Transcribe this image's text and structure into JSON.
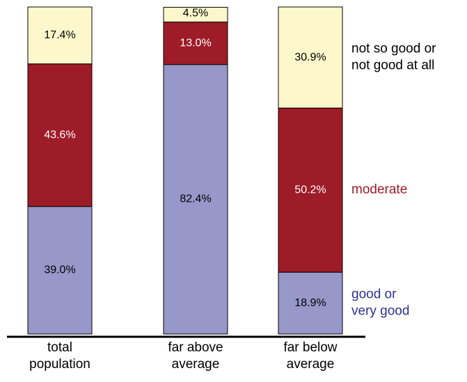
{
  "chart_data": {
    "type": "stacked-bar",
    "categories": [
      [
        "total",
        "population"
      ],
      [
        "far above",
        "average"
      ],
      [
        "far below",
        "average"
      ]
    ],
    "ylim": [
      0,
      100
    ],
    "series": [
      {
        "name": [
          "good or",
          "very good"
        ],
        "color": "#9797c9",
        "label_color": "#000000",
        "legend_color": "#2e3192",
        "values": [
          39.0,
          82.4,
          18.9
        ],
        "value_labels": [
          "39.0%",
          "82.4%",
          "18.9%"
        ]
      },
      {
        "name": [
          "moderate"
        ],
        "color": "#9e1b28",
        "label_color": "#ffffff",
        "legend_color": "#9e1b28",
        "values": [
          43.6,
          13.0,
          50.2
        ],
        "value_labels": [
          "43.6%",
          "13.0%",
          "50.2%"
        ]
      },
      {
        "name": [
          "not so good or",
          "not good at all"
        ],
        "color": "#fdf8cc",
        "label_color": "#000000",
        "legend_color": "#000000",
        "values": [
          17.4,
          4.5,
          30.9
        ],
        "value_labels": [
          "17.4%",
          "4.5%",
          "30.9%"
        ]
      }
    ]
  }
}
